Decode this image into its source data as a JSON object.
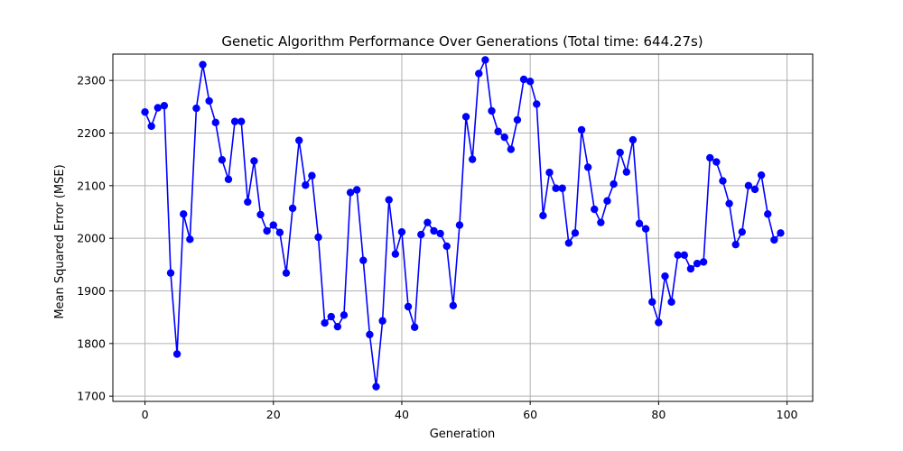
{
  "chart_data": {
    "type": "line",
    "title": "Genetic Algorithm Performance Over Generations (Total time: 644.27s)",
    "xlabel": "Generation",
    "ylabel": "Mean Squared Error (MSE)",
    "xlim": [
      -5,
      104
    ],
    "ylim": [
      1690,
      2350
    ],
    "xticks": [
      0,
      20,
      40,
      60,
      80,
      100
    ],
    "yticks": [
      1700,
      1800,
      1900,
      2000,
      2100,
      2200,
      2300
    ],
    "grid": true,
    "colors": {
      "line": "#0000ff",
      "marker": "#0000ff"
    },
    "series": [
      {
        "x": [
          0,
          1,
          2,
          3,
          4,
          5,
          6,
          7,
          8,
          9,
          10,
          11,
          12,
          13,
          14,
          15,
          16,
          17,
          18,
          19,
          20,
          21,
          22,
          23,
          24,
          25,
          26,
          27,
          28,
          29,
          30,
          31,
          32,
          33,
          34,
          35,
          36,
          37,
          38,
          39,
          40,
          41,
          42,
          43,
          44,
          45,
          46,
          47,
          48,
          49,
          50,
          51,
          52,
          53,
          54,
          55,
          56,
          57,
          58,
          59,
          60,
          61,
          62,
          63,
          64,
          65,
          66,
          67,
          68,
          69,
          70,
          71,
          72,
          73,
          74,
          75,
          76,
          77,
          78,
          79,
          80,
          81,
          82,
          83,
          84,
          85,
          86,
          87,
          88,
          89,
          90,
          91,
          92,
          93,
          94,
          95,
          96,
          97,
          98,
          99
        ],
        "values": [
          2240,
          2213,
          2248,
          2252,
          1934,
          1780,
          2046,
          1998,
          2247,
          2330,
          2261,
          2220,
          2149,
          2112,
          2222,
          2222,
          2069,
          2147,
          2045,
          2014,
          2025,
          2011,
          1934,
          2057,
          2186,
          2101,
          2119,
          2002,
          1839,
          1851,
          1832,
          1854,
          2087,
          2092,
          1958,
          1817,
          1718,
          1843,
          2073,
          1970,
          2012,
          1870,
          1831,
          2007,
          2030,
          2014,
          2009,
          1985,
          1872,
          2025,
          2231,
          2150,
          2313,
          2339,
          2242,
          2203,
          2192,
          2169,
          2225,
          2302,
          2298,
          2255,
          2043,
          2125,
          2095,
          2095,
          1991,
          2010,
          2206,
          2135,
          2055,
          2030,
          2071,
          2103,
          2163,
          2126,
          2187,
          2028,
          2018,
          1879,
          1840,
          1928,
          1879,
          1968,
          1968,
          1942,
          1952,
          1955,
          2153,
          2145,
          2109,
          2066,
          1988,
          2012,
          2100,
          2093,
          2120,
          2046,
          1997,
          2010
        ]
      }
    ]
  }
}
